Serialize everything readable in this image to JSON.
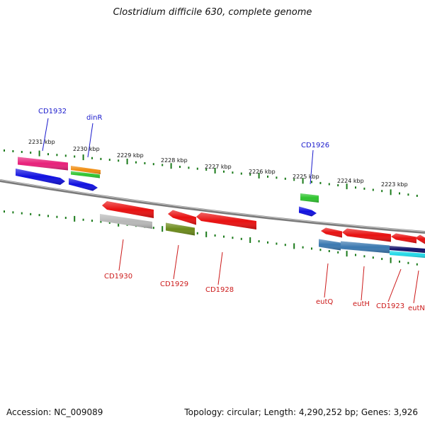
{
  "title": "Clostridium difficile 630, complete genome",
  "footer": {
    "accession": "Accession: NC_009089",
    "summary": "Topology: circular; Length: 4,290,252 bp; Genes: 3,926"
  },
  "colors": {
    "backbone": "#808080",
    "tick": "#1a7a1a",
    "label_forward": "#1a1acc",
    "label_reverse": "#cc1a1a",
    "ruler_text": "#111111"
  },
  "ruler_labels": [
    {
      "text": "2231 kbp"
    },
    {
      "text": "2230 kbp"
    },
    {
      "text": "2229 kbp"
    },
    {
      "text": "2228 kbp"
    },
    {
      "text": "2227 kbp"
    },
    {
      "text": "2226 kbp"
    },
    {
      "text": "2225 kbp"
    },
    {
      "text": "2224 kbp"
    },
    {
      "text": "2223 kbp"
    }
  ],
  "gene_labels": [
    {
      "text": "CD1932",
      "strand": "forward"
    },
    {
      "text": "dinR",
      "strand": "forward"
    },
    {
      "text": "CD1926",
      "strand": "forward"
    },
    {
      "text": "CD1930",
      "strand": "reverse"
    },
    {
      "text": "CD1929",
      "strand": "reverse"
    },
    {
      "text": "CD1928",
      "strand": "reverse"
    },
    {
      "text": "eutQ",
      "strand": "reverse"
    },
    {
      "text": "eutH",
      "strand": "reverse"
    },
    {
      "text": "CD1923",
      "strand": "reverse"
    },
    {
      "text": "eutN",
      "strand": "reverse"
    }
  ],
  "features": [
    {
      "name": "CD1932-cds",
      "color": "#e8207a",
      "strand": "forward"
    },
    {
      "name": "CD1932-gene",
      "color": "#1010e0",
      "strand": "forward"
    },
    {
      "name": "dinR-cds-orange",
      "color": "#f08c10",
      "strand": "forward"
    },
    {
      "name": "dinR-cds-green",
      "color": "#2ec42e",
      "strand": "forward"
    },
    {
      "name": "dinR-gene",
      "color": "#1010e0",
      "strand": "forward"
    },
    {
      "name": "CD1926-cds",
      "color": "#2ec42e",
      "strand": "forward"
    },
    {
      "name": "CD1926-gene",
      "color": "#1010e0",
      "strand": "forward"
    },
    {
      "name": "CD1930-gene",
      "color": "#e81010",
      "strand": "reverse"
    },
    {
      "name": "CD1930-cds",
      "color": "#b8b8b8",
      "strand": "reverse"
    },
    {
      "name": "CD1929-gene",
      "color": "#e81010",
      "strand": "reverse"
    },
    {
      "name": "CD1929-cds",
      "color": "#6b8a1a",
      "strand": "reverse"
    },
    {
      "name": "CD1928-gene",
      "color": "#e81010",
      "strand": "reverse"
    },
    {
      "name": "eutQ-gene",
      "color": "#e81010",
      "strand": "reverse"
    },
    {
      "name": "eutH-gene",
      "color": "#e81010",
      "strand": "reverse"
    },
    {
      "name": "CD1923-gene",
      "color": "#e81010",
      "strand": "reverse"
    },
    {
      "name": "eutN-gene",
      "color": "#e81010",
      "strand": "reverse"
    },
    {
      "name": "eutQ-cds",
      "color": "#3a78b0",
      "strand": "reverse"
    },
    {
      "name": "eutH-cds",
      "color": "#3a78b0",
      "strand": "reverse"
    },
    {
      "name": "CD1923-cds-navy",
      "color": "#10106a",
      "strand": "reverse"
    },
    {
      "name": "CD1923-cds-cyan",
      "color": "#20d8e8",
      "strand": "reverse"
    }
  ]
}
